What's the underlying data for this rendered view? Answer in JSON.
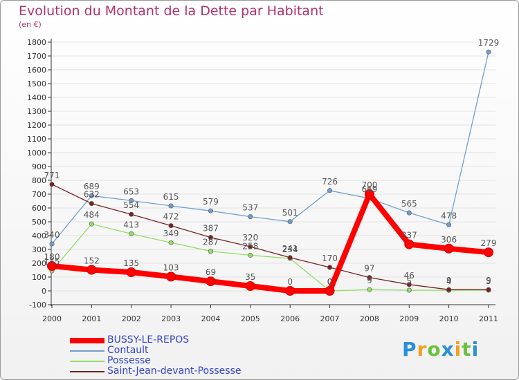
{
  "chart_data": {
    "type": "line",
    "title": "Evolution du Montant de la Dette par Habitant",
    "subtitle": "(en €)",
    "xlabel": "",
    "ylabel": "",
    "x": [
      "2000",
      "2001",
      "2002",
      "2003",
      "2004",
      "2005",
      "2006",
      "2007",
      "2008",
      "2009",
      "2010",
      "2011"
    ],
    "ylim": [
      -100,
      1800
    ],
    "yticks": [
      -100,
      0,
      100,
      200,
      300,
      400,
      500,
      600,
      700,
      800,
      900,
      1000,
      1100,
      1200,
      1300,
      1400,
      1500,
      1600,
      1700,
      1800
    ],
    "grid": true,
    "legend_position": "bottom-left",
    "series": [
      {
        "name": "BUSSY-LE-REPOS",
        "color": "#ff0000",
        "values": [
          180,
          152,
          135,
          103,
          69,
          35,
          0,
          0,
          700,
          337,
          306,
          279
        ],
        "labels": [
          "180",
          "152",
          "135",
          "103",
          "69",
          "35",
          "0",
          "0",
          "700",
          "337",
          "306",
          "279"
        ]
      },
      {
        "name": "Contault",
        "color": "#6f9fd0",
        "values": [
          340,
          689,
          653,
          615,
          579,
          537,
          501,
          726,
          669,
          565,
          478,
          1729
        ],
        "labels": [
          "340",
          "689",
          "653",
          "615",
          "579",
          "537",
          "501",
          "726",
          "669",
          "565",
          "478",
          "1729"
        ]
      },
      {
        "name": "Possesse",
        "color": "#90dd66",
        "values": [
          145,
          484,
          413,
          349,
          287,
          258,
          234,
          0,
          9,
          5,
          4,
          5
        ],
        "labels": [
          "145",
          "484",
          "413",
          "349",
          "287",
          "258",
          "234",
          "0",
          "9",
          "5",
          "4",
          "5"
        ]
      },
      {
        "name": "Saint-Jean-devant-Possesse",
        "color": "#7a2020",
        "values": [
          771,
          632,
          554,
          472,
          387,
          320,
          241,
          170,
          97,
          46,
          9,
          9
        ],
        "labels": [
          "771",
          "632",
          "554",
          "472",
          "387",
          "320",
          "241",
          "170",
          "97",
          "46",
          "9",
          "9"
        ]
      }
    ]
  },
  "brand": {
    "letters": [
      "P",
      "r",
      "o",
      "x",
      "i",
      "t",
      "i"
    ],
    "colors": [
      "#2a8fd6",
      "#f0a020",
      "#6cc040",
      "#2a8fd6",
      "#f0a020",
      "#6cc040",
      "#2a8fd6"
    ]
  }
}
